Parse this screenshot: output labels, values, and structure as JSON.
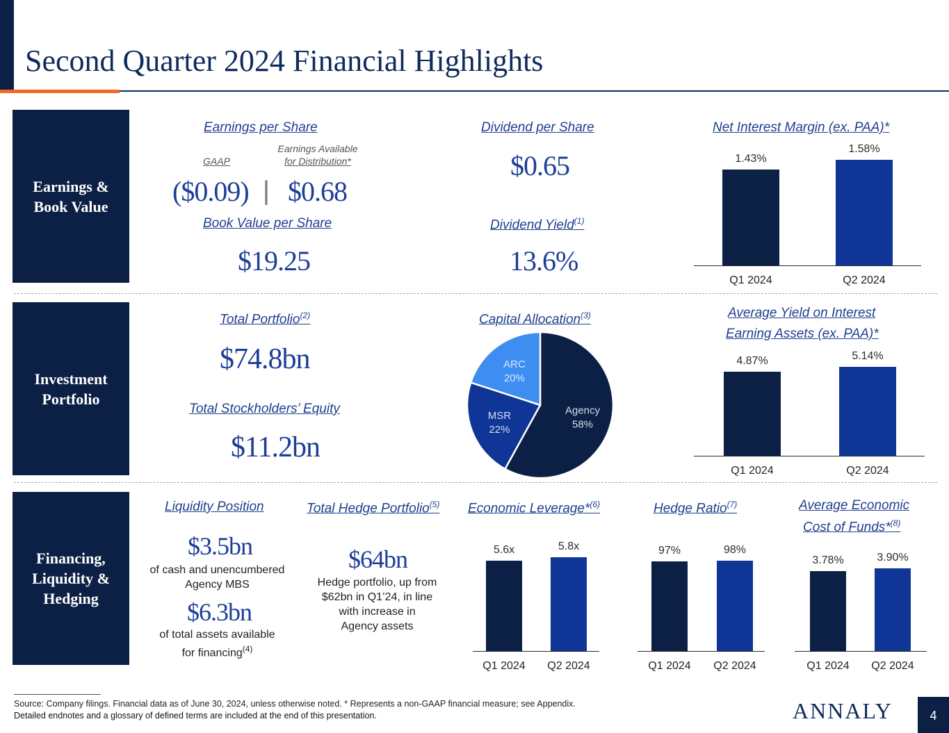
{
  "header": {
    "title": "Second Quarter 2024 Financial Highlights"
  },
  "sections": {
    "earnings": "Earnings & Book Value",
    "investment": "Investment Portfolio",
    "financing": "Financing, Liquidity & Hedging"
  },
  "earnings": {
    "eps_title": "Earnings per Share",
    "gaap_label": "GAAP",
    "ead_label_1": "Earnings Available",
    "ead_label_2": "for Distribution*",
    "gaap_value": "($0.09)",
    "separator": "|",
    "ead_value": "$0.68",
    "bvps_title": "Book Value per Share",
    "bvps_value": "$19.25",
    "dps_title": "Dividend per Share",
    "dps_value": "$0.65",
    "yield_title": "Dividend Yield",
    "yield_note": "(1)",
    "yield_value": "13.6%",
    "nim_title": "Net Interest Margin (ex. PAA)*"
  },
  "investment": {
    "portfolio_title": "Total Portfolio",
    "portfolio_note": "(2)",
    "portfolio_value": "$74.8bn",
    "equity_title": "Total Stockholders’ Equity",
    "equity_value": "$11.2bn",
    "capital_title": "Capital Allocation",
    "capital_note": "(3)",
    "yield_title_1": "Average Yield on Interest",
    "yield_title_2": "Earning Assets (ex. PAA)*"
  },
  "financing": {
    "liquidity_title": "Liquidity Position",
    "liquidity_value_1": "$3.5bn",
    "liquidity_text_1a": "of cash and unencumbered",
    "liquidity_text_1b": "Agency MBS",
    "liquidity_value_2": "$6.3bn",
    "liquidity_text_2a": "of total assets available",
    "liquidity_text_2b": "for financing",
    "liquidity_note": "(4)",
    "hedge_title": "Total Hedge Portfolio",
    "hedge_note": "(5)",
    "hedge_value": "$64bn",
    "hedge_text_1": "Hedge portfolio, up from",
    "hedge_text_2": "$62bn in Q1’24, in line",
    "hedge_text_3": "with increase in",
    "hedge_text_4": "Agency assets",
    "leverage_title": "Economic Leverage*",
    "leverage_note": "(6)",
    "ratio_title": "Hedge Ratio",
    "ratio_note": "(7)",
    "cof_title_1": "Average Economic",
    "cof_title_2": "Cost of Funds*",
    "cof_note": "(8)"
  },
  "chart_data": [
    {
      "id": "nim",
      "type": "bar",
      "categories": [
        "Q1 2024",
        "Q2 2024"
      ],
      "values": [
        1.43,
        1.58
      ],
      "labels": [
        "1.43%",
        "1.58%"
      ]
    },
    {
      "id": "avg_yield",
      "type": "bar",
      "categories": [
        "Q1 2024",
        "Q2 2024"
      ],
      "values": [
        4.87,
        5.14
      ],
      "labels": [
        "4.87%",
        "5.14%"
      ]
    },
    {
      "id": "leverage",
      "type": "bar",
      "categories": [
        "Q1 2024",
        "Q2 2024"
      ],
      "values": [
        5.6,
        5.8
      ],
      "labels": [
        "5.6x",
        "5.8x"
      ]
    },
    {
      "id": "hedge_ratio",
      "type": "bar",
      "categories": [
        "Q1 2024",
        "Q2 2024"
      ],
      "values": [
        97,
        98
      ],
      "labels": [
        "97%",
        "98%"
      ]
    },
    {
      "id": "cof",
      "type": "bar",
      "categories": [
        "Q1 2024",
        "Q2 2024"
      ],
      "values": [
        3.78,
        3.9
      ],
      "labels": [
        "3.78%",
        "3.90%"
      ]
    },
    {
      "id": "capital_allocation",
      "type": "pie",
      "categories": [
        "Agency",
        "MSR",
        "ARC"
      ],
      "values": [
        58,
        22,
        20
      ],
      "labels": [
        "58%",
        "22%",
        "20%"
      ],
      "colors": [
        "#0c1f45",
        "#0f3597",
        "#3d8ef0"
      ]
    }
  ],
  "footer": {
    "source": "Source: Company filings. Financial data as of June 30, 2024, unless otherwise noted. * Represents a non-GAAP financial measure; see Appendix.",
    "endnotes": "Detailed endnotes and a glossary of defined terms are included at the end of this presentation.",
    "logo": "ANNALY",
    "page": "4"
  },
  "colors": {
    "navy": "#0c1f45",
    "blue": "#0f3597",
    "light_blue": "#3d8ef0",
    "orange": "#f26a21",
    "link": "#1f3f8f"
  }
}
